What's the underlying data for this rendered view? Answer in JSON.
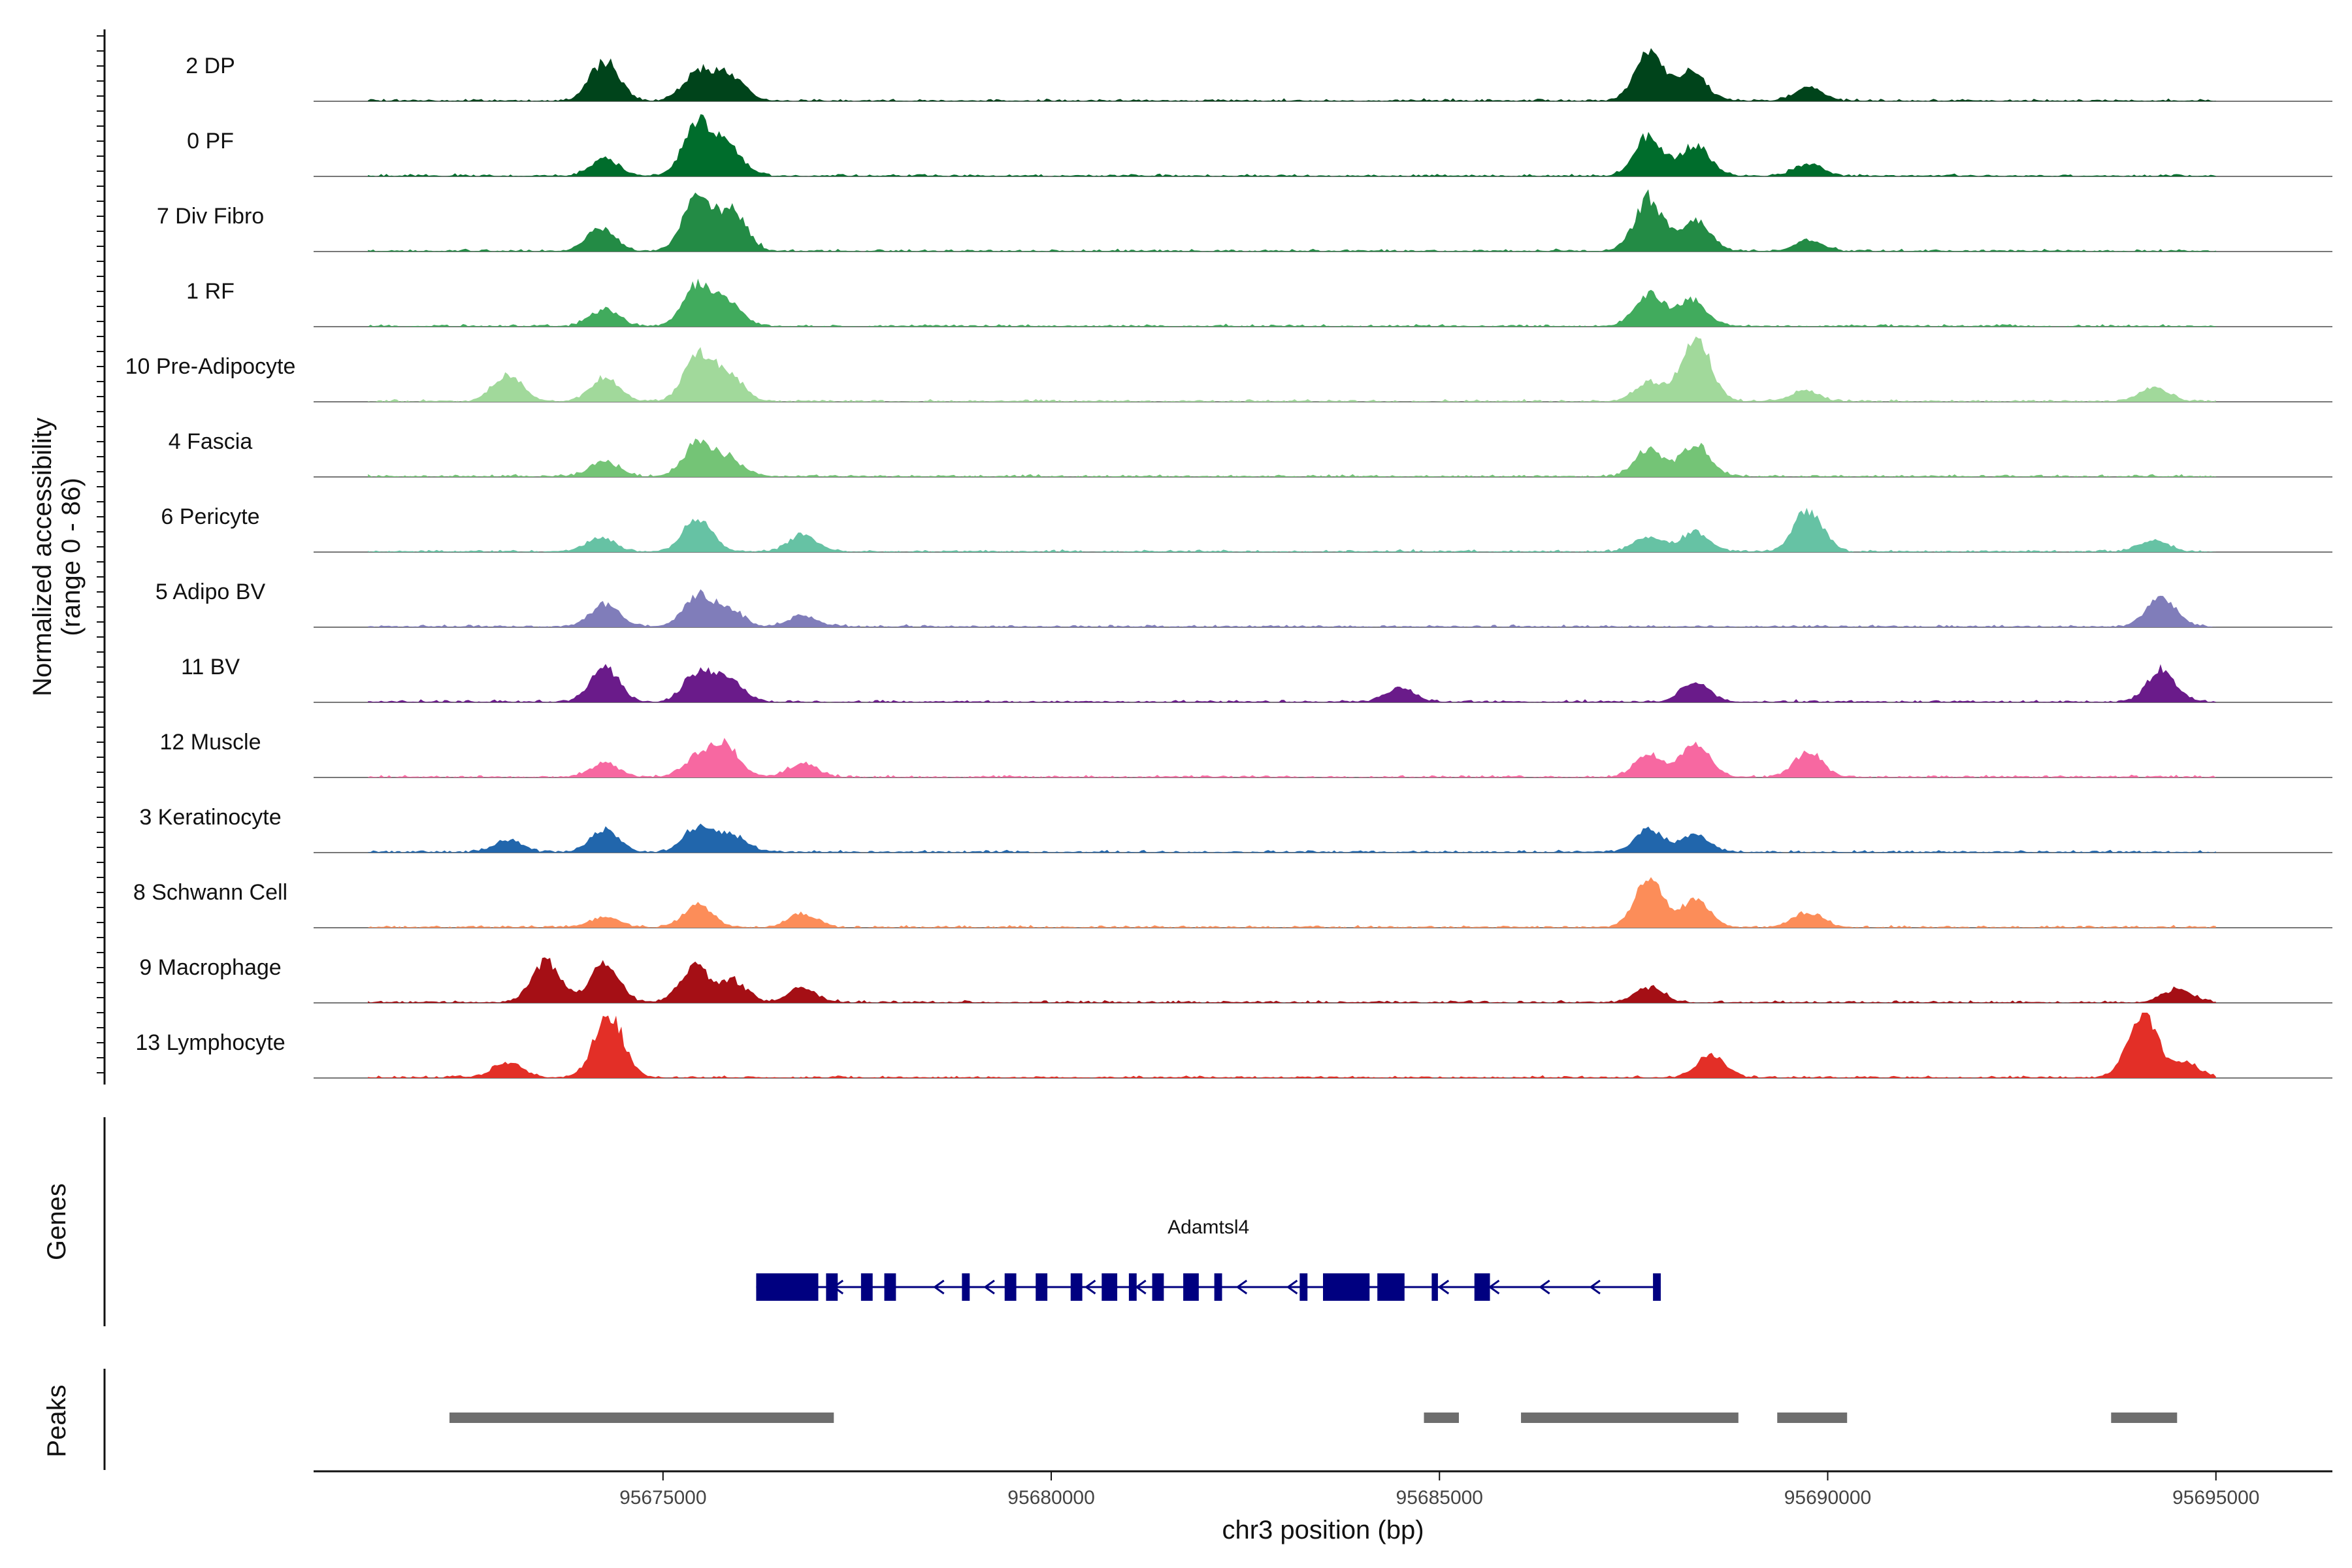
{
  "chart_data": {
    "type": "area",
    "ylabel": "Normalized accessibility",
    "ylabel_range": "(range 0 - 86)",
    "ylim": [
      0,
      86
    ],
    "xlabel": "chr3 position (bp)",
    "xlim": [
      95670500,
      95696500
    ],
    "xticks": [
      95675000,
      95680000,
      95685000,
      95690000,
      95695000
    ],
    "xtick_labels": [
      "95675000",
      "95680000",
      "95685000",
      "95690000",
      "95695000"
    ],
    "genes_label": "Genes",
    "peaks_label": "Peaks",
    "series": [
      {
        "name": "2 DP",
        "color": "#00441b",
        "peaks": [
          [
            95674250,
            52
          ],
          [
            95675450,
            38
          ],
          [
            95675850,
            35
          ],
          [
            95687700,
            62
          ],
          [
            95688250,
            38
          ],
          [
            95689750,
            18
          ]
        ]
      },
      {
        "name": "0 PF",
        "color": "#006d2c",
        "peaks": [
          [
            95674250,
            22
          ],
          [
            95675450,
            72
          ],
          [
            95675850,
            35
          ],
          [
            95687700,
            52
          ],
          [
            95688300,
            40
          ],
          [
            95689750,
            16
          ]
        ]
      },
      {
        "name": "7 Div Fibro",
        "color": "#238b45",
        "peaks": [
          [
            95674200,
            30
          ],
          [
            95675450,
            70
          ],
          [
            95675900,
            50
          ],
          [
            95687700,
            68
          ],
          [
            95688300,
            40
          ],
          [
            95689750,
            14
          ]
        ]
      },
      {
        "name": "1 RF",
        "color": "#41ab5d",
        "peaks": [
          [
            95674250,
            22
          ],
          [
            95675450,
            55
          ],
          [
            95675850,
            28
          ],
          [
            95687700,
            42
          ],
          [
            95688250,
            35
          ]
        ]
      },
      {
        "name": "10 Pre-Adipocyte",
        "color": "#a1d99b",
        "peaks": [
          [
            95673000,
            35
          ],
          [
            95674250,
            32
          ],
          [
            95675450,
            58
          ],
          [
            95675850,
            35
          ],
          [
            95687700,
            25
          ],
          [
            95688300,
            86
          ],
          [
            95689700,
            14
          ],
          [
            95694200,
            18
          ]
        ]
      },
      {
        "name": "4 Fascia",
        "color": "#74c476",
        "peaks": [
          [
            95674250,
            20
          ],
          [
            95675450,
            45
          ],
          [
            95675850,
            22
          ],
          [
            95687700,
            35
          ],
          [
            95688300,
            42
          ]
        ]
      },
      {
        "name": "6 Pericyte",
        "color": "#66c2a4",
        "peaks": [
          [
            95674200,
            18
          ],
          [
            95675450,
            45
          ],
          [
            95676800,
            22
          ],
          [
            95687700,
            20
          ],
          [
            95688300,
            25
          ],
          [
            95689750,
            56
          ],
          [
            95694200,
            15
          ]
        ]
      },
      {
        "name": "5 Adipo BV",
        "color": "#807dba",
        "peaks": [
          [
            95674250,
            30
          ],
          [
            95675450,
            40
          ],
          [
            95675850,
            22
          ],
          [
            95676800,
            15
          ],
          [
            95694300,
            40
          ]
        ]
      },
      {
        "name": "11 BV",
        "color": "#6a1b8a",
        "peaks": [
          [
            95674250,
            45
          ],
          [
            95675450,
            38
          ],
          [
            95675850,
            30
          ],
          [
            95684500,
            18
          ],
          [
            95688300,
            25
          ],
          [
            95694300,
            42
          ]
        ]
      },
      {
        "name": "12 Muscle",
        "color": "#f768a1",
        "peaks": [
          [
            95674250,
            18
          ],
          [
            95675450,
            25
          ],
          [
            95675800,
            40
          ],
          [
            95676800,
            18
          ],
          [
            95687700,
            30
          ],
          [
            95688300,
            42
          ],
          [
            95689750,
            32
          ]
        ]
      },
      {
        "name": "3 Keratinocyte",
        "color": "#2166ac",
        "peaks": [
          [
            95673000,
            15
          ],
          [
            95674250,
            30
          ],
          [
            95675450,
            32
          ],
          [
            95675900,
            22
          ],
          [
            95687700,
            30
          ],
          [
            95688300,
            22
          ]
        ]
      },
      {
        "name": "8 Schwann Cell",
        "color": "#fc8d59",
        "peaks": [
          [
            95674250,
            14
          ],
          [
            95675450,
            30
          ],
          [
            95676800,
            18
          ],
          [
            95687700,
            62
          ],
          [
            95688300,
            35
          ],
          [
            95689750,
            20
          ]
        ]
      },
      {
        "name": "9 Macrophage",
        "color": "#a50f15",
        "peaks": [
          [
            95673500,
            55
          ],
          [
            95674250,
            50
          ],
          [
            95675400,
            48
          ],
          [
            95675900,
            28
          ],
          [
            95676800,
            18
          ],
          [
            95687700,
            20
          ],
          [
            95694500,
            18
          ]
        ]
      },
      {
        "name": "13 Lymphocyte",
        "color": "#e32f27",
        "peaks": [
          [
            95674300,
            86
          ],
          [
            95673000,
            20
          ],
          [
            95688500,
            30
          ],
          [
            95694050,
            86
          ],
          [
            95694600,
            20
          ]
        ]
      }
    ],
    "gene": {
      "name": "Adamtsl4",
      "color": "#000080",
      "strand": "-",
      "start": 95676200,
      "end": 95687850,
      "exons": [
        [
          95676200,
          95677000
        ],
        [
          95677100,
          95677250
        ],
        [
          95677550,
          95677700
        ],
        [
          95677850,
          95678000
        ],
        [
          95678850,
          95678950
        ],
        [
          95679400,
          95679550
        ],
        [
          95679800,
          95679950
        ],
        [
          95680250,
          95680400
        ],
        [
          95680650,
          95680850
        ],
        [
          95681000,
          95681100
        ],
        [
          95681300,
          95681450
        ],
        [
          95681700,
          95681900
        ],
        [
          95682100,
          95682200
        ],
        [
          95683200,
          95683300
        ],
        [
          95683500,
          95684100
        ],
        [
          95684200,
          95684550
        ],
        [
          95684900,
          95684980
        ],
        [
          95685450,
          95685650
        ],
        [
          95687750,
          95687850
        ]
      ]
    },
    "peaks": [
      [
        95672250,
        95677200
      ],
      [
        95684800,
        95685250
      ],
      [
        95686050,
        95688850
      ],
      [
        95689350,
        95690250
      ],
      [
        95693650,
        95694500
      ]
    ]
  }
}
